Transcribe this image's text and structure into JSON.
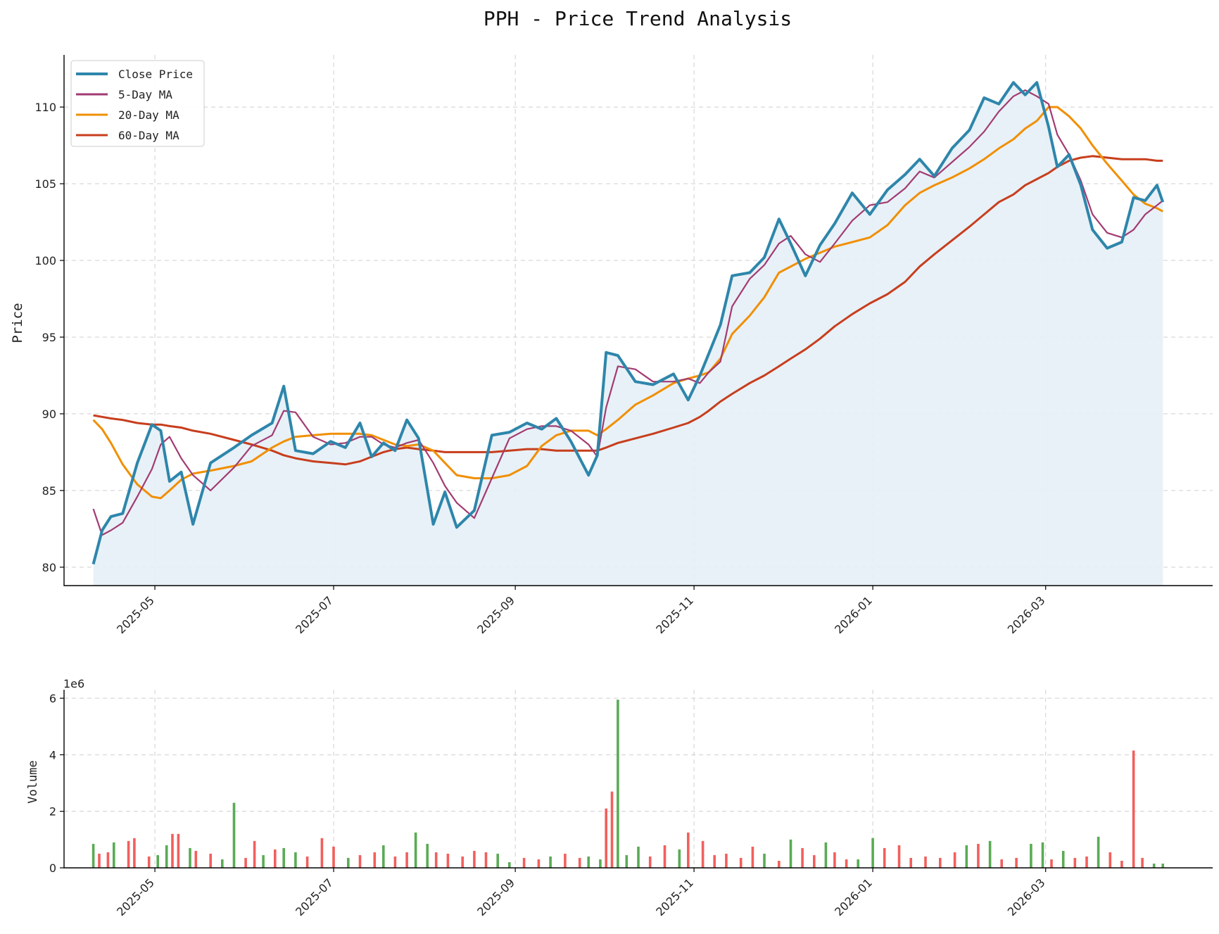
{
  "title": "PPH - Price Trend Analysis",
  "colors": {
    "close": "#2e86ab",
    "ma5": "#a23b72",
    "ma20": "#f18f01",
    "ma60": "#c73e1d",
    "fill": "#e6f0f6",
    "vol_up": "#f25f5c",
    "vol_down": "#5aab55"
  },
  "chart_data": [
    {
      "type": "line",
      "title": "PPH - Price Trend Analysis",
      "ylabel": "Price",
      "ylim": [
        78.8,
        113.4
      ],
      "xlim": [
        "2025-03-31",
        "2026-04-27"
      ],
      "yticks": [
        80,
        85,
        90,
        95,
        100,
        105,
        110
      ],
      "xticks": [
        "2025-05",
        "2025-07",
        "2025-09",
        "2025-11",
        "2026-01",
        "2026-03"
      ],
      "grid": true,
      "legend_position": "upper-left",
      "x": [
        "2025-04-10",
        "2025-04-13",
        "2025-04-16",
        "2025-04-20",
        "2025-04-25",
        "2025-04-30",
        "2025-05-03",
        "2025-05-06",
        "2025-05-10",
        "2025-05-14",
        "2025-05-20",
        "2025-05-28",
        "2025-06-03",
        "2025-06-10",
        "2025-06-14",
        "2025-06-18",
        "2025-06-24",
        "2025-06-30",
        "2025-07-05",
        "2025-07-10",
        "2025-07-14",
        "2025-07-18",
        "2025-07-22",
        "2025-07-26",
        "2025-07-30",
        "2025-08-04",
        "2025-08-08",
        "2025-08-12",
        "2025-08-18",
        "2025-08-24",
        "2025-08-30",
        "2025-09-05",
        "2025-09-10",
        "2025-09-15",
        "2025-09-20",
        "2025-09-26",
        "2025-09-29",
        "2025-10-02",
        "2025-10-06",
        "2025-10-12",
        "2025-10-18",
        "2025-10-25",
        "2025-10-30",
        "2025-11-03",
        "2025-11-06",
        "2025-11-10",
        "2025-11-14",
        "2025-11-20",
        "2025-11-25",
        "2025-11-30",
        "2025-12-04",
        "2025-12-09",
        "2025-12-14",
        "2025-12-19",
        "2025-12-25",
        "2025-12-31",
        "2026-01-06",
        "2026-01-12",
        "2026-01-17",
        "2026-01-22",
        "2026-01-28",
        "2026-02-03",
        "2026-02-08",
        "2026-02-13",
        "2026-02-18",
        "2026-02-22",
        "2026-02-26",
        "2026-03-02",
        "2026-03-05",
        "2026-03-09",
        "2026-03-13",
        "2026-03-17",
        "2026-03-22",
        "2026-03-27",
        "2026-03-31",
        "2026-04-04",
        "2026-04-08",
        "2026-04-10"
      ],
      "series": [
        {
          "name": "Close Price",
          "values": [
            80.2,
            82.4,
            83.3,
            83.5,
            86.8,
            89.3,
            88.9,
            85.6,
            86.2,
            82.8,
            86.8,
            87.8,
            88.6,
            89.4,
            91.8,
            87.6,
            87.4,
            88.2,
            87.8,
            89.4,
            87.2,
            88.1,
            87.6,
            89.6,
            88.4,
            82.8,
            84.9,
            82.6,
            83.7,
            88.6,
            88.8,
            89.4,
            89.0,
            89.7,
            88.2,
            86.0,
            87.3,
            94.0,
            93.8,
            92.1,
            91.9,
            92.6,
            90.9,
            92.5,
            93.9,
            95.8,
            99.0,
            99.2,
            100.2,
            102.7,
            101.1,
            99.0,
            101.0,
            102.4,
            104.4,
            103.0,
            104.6,
            105.6,
            106.6,
            105.5,
            107.3,
            108.5,
            110.6,
            110.2,
            111.6,
            110.8,
            111.6,
            108.7,
            106.1,
            106.9,
            104.9,
            102.0,
            100.8,
            101.2,
            104.1,
            103.9,
            104.9,
            103.8
          ]
        },
        {
          "name": "5-Day MA",
          "values": [
            83.8,
            82.1,
            82.4,
            82.9,
            84.6,
            86.4,
            88.0,
            88.5,
            87.1,
            86.0,
            85.0,
            86.5,
            87.9,
            88.6,
            90.2,
            90.1,
            88.5,
            88.0,
            88.1,
            88.5,
            88.5,
            88.0,
            87.8,
            88.1,
            88.3,
            86.8,
            85.3,
            84.2,
            83.2,
            85.8,
            88.4,
            89.0,
            89.2,
            89.2,
            88.9,
            88.0,
            87.2,
            90.4,
            93.1,
            92.9,
            92.1,
            92.1,
            92.3,
            92.0,
            92.7,
            93.4,
            97.0,
            98.8,
            99.7,
            101.1,
            101.6,
            100.4,
            99.9,
            101.1,
            102.6,
            103.6,
            103.8,
            104.7,
            105.8,
            105.4,
            106.4,
            107.4,
            108.4,
            109.7,
            110.7,
            111.1,
            110.7,
            110.2,
            108.2,
            106.9,
            105.2,
            103.0,
            101.8,
            101.5,
            102.0,
            103.0,
            103.6,
            103.9
          ]
        },
        {
          "name": "20-Day MA",
          "values": [
            89.6,
            89.0,
            88.1,
            86.7,
            85.4,
            84.6,
            84.5,
            85.0,
            85.7,
            86.1,
            86.3,
            86.6,
            86.9,
            87.8,
            88.2,
            88.5,
            88.6,
            88.7,
            88.7,
            88.7,
            88.6,
            88.3,
            88.0,
            87.9,
            88.0,
            87.6,
            86.8,
            86.0,
            85.8,
            85.8,
            86.0,
            86.6,
            87.9,
            88.6,
            88.9,
            88.9,
            88.6,
            89.0,
            89.6,
            90.6,
            91.2,
            92.0,
            92.3,
            92.5,
            92.7,
            93.6,
            95.2,
            96.4,
            97.6,
            99.2,
            99.6,
            100.1,
            100.5,
            100.9,
            101.2,
            101.5,
            102.3,
            103.6,
            104.4,
            104.9,
            105.4,
            106.0,
            106.6,
            107.3,
            107.9,
            108.6,
            109.1,
            110.0,
            110.0,
            109.4,
            108.6,
            107.5,
            106.3,
            105.2,
            104.3,
            103.7,
            103.4,
            103.2
          ]
        },
        {
          "name": "60-Day MA",
          "values": [
            89.9,
            89.8,
            89.7,
            89.6,
            89.4,
            89.3,
            89.3,
            89.2,
            89.1,
            88.9,
            88.7,
            88.3,
            88.0,
            87.6,
            87.3,
            87.1,
            86.9,
            86.8,
            86.7,
            86.9,
            87.2,
            87.5,
            87.7,
            87.8,
            87.7,
            87.6,
            87.5,
            87.5,
            87.5,
            87.5,
            87.6,
            87.7,
            87.7,
            87.6,
            87.6,
            87.6,
            87.6,
            87.8,
            88.1,
            88.4,
            88.7,
            89.1,
            89.4,
            89.8,
            90.2,
            90.8,
            91.3,
            92.0,
            92.5,
            93.1,
            93.6,
            94.2,
            94.9,
            95.7,
            96.5,
            97.2,
            97.8,
            98.6,
            99.6,
            100.4,
            101.3,
            102.2,
            103.0,
            103.8,
            104.3,
            104.9,
            105.3,
            105.7,
            106.1,
            106.5,
            106.7,
            106.8,
            106.7,
            106.6,
            106.6,
            106.6,
            106.5,
            106.5
          ]
        }
      ]
    },
    {
      "type": "bar",
      "ylabel": "Volume",
      "y_offset_label": "1e6",
      "ylim": [
        0,
        6.3
      ],
      "yticks": [
        0,
        2,
        4,
        6
      ],
      "xticks": [
        "2025-05",
        "2025-07",
        "2025-09",
        "2025-11",
        "2026-01",
        "2026-03"
      ],
      "grid": true,
      "x": [
        "2025-04-10",
        "2025-04-12",
        "2025-04-15",
        "2025-04-17",
        "2025-04-22",
        "2025-04-24",
        "2025-04-29",
        "2025-05-02",
        "2025-05-05",
        "2025-05-07",
        "2025-05-09",
        "2025-05-13",
        "2025-05-15",
        "2025-05-20",
        "2025-05-24",
        "2025-05-28",
        "2025-06-01",
        "2025-06-04",
        "2025-06-07",
        "2025-06-11",
        "2025-06-14",
        "2025-06-18",
        "2025-06-22",
        "2025-06-27",
        "2025-07-01",
        "2025-07-06",
        "2025-07-10",
        "2025-07-15",
        "2025-07-18",
        "2025-07-22",
        "2025-07-26",
        "2025-07-29",
        "2025-08-02",
        "2025-08-05",
        "2025-08-09",
        "2025-08-14",
        "2025-08-18",
        "2025-08-22",
        "2025-08-26",
        "2025-08-30",
        "2025-09-04",
        "2025-09-09",
        "2025-09-13",
        "2025-09-18",
        "2025-09-23",
        "2025-09-26",
        "2025-09-30",
        "2025-10-02",
        "2025-10-04",
        "2025-10-06",
        "2025-10-09",
        "2025-10-13",
        "2025-10-17",
        "2025-10-22",
        "2025-10-27",
        "2025-10-30",
        "2025-11-04",
        "2025-11-08",
        "2025-11-12",
        "2025-11-17",
        "2025-11-21",
        "2025-11-25",
        "2025-11-30",
        "2025-12-04",
        "2025-12-08",
        "2025-12-12",
        "2025-12-16",
        "2025-12-19",
        "2025-12-23",
        "2025-12-27",
        "2026-01-01",
        "2026-01-05",
        "2026-01-10",
        "2026-01-14",
        "2026-01-19",
        "2026-01-24",
        "2026-01-29",
        "2026-02-02",
        "2026-02-06",
        "2026-02-10",
        "2026-02-14",
        "2026-02-19",
        "2026-02-24",
        "2026-02-28",
        "2026-03-03",
        "2026-03-07",
        "2026-03-11",
        "2026-03-15",
        "2026-03-19",
        "2026-03-23",
        "2026-03-27",
        "2026-03-31",
        "2026-04-03",
        "2026-04-07",
        "2026-04-10"
      ],
      "values": [
        0.85,
        0.5,
        0.55,
        0.9,
        0.95,
        1.05,
        0.4,
        0.45,
        0.8,
        1.2,
        1.2,
        0.7,
        0.6,
        0.5,
        0.3,
        2.3,
        0.35,
        0.95,
        0.45,
        0.65,
        0.7,
        0.55,
        0.4,
        1.05,
        0.75,
        0.35,
        0.45,
        0.55,
        0.8,
        0.4,
        0.55,
        1.25,
        0.85,
        0.55,
        0.5,
        0.4,
        0.6,
        0.55,
        0.5,
        0.2,
        0.35,
        0.3,
        0.4,
        0.5,
        0.35,
        0.4,
        0.3,
        2.1,
        2.7,
        5.95,
        0.45,
        0.75,
        0.4,
        0.8,
        0.65,
        1.25,
        0.95,
        0.45,
        0.5,
        0.35,
        0.75,
        0.5,
        0.25,
        1.0,
        0.7,
        0.45,
        0.9,
        0.55,
        0.3,
        0.3,
        1.05,
        0.7,
        0.8,
        0.35,
        0.4,
        0.35,
        0.55,
        0.8,
        0.85,
        0.95,
        0.3,
        0.35,
        0.85,
        0.9,
        0.3,
        0.6,
        0.35,
        0.4,
        1.1,
        0.55,
        0.25,
        4.15,
        0.35,
        0.15,
        0.15
      ],
      "directions": [
        "down",
        "up",
        "up",
        "down",
        "up",
        "up",
        "up",
        "down",
        "down",
        "up",
        "up",
        "down",
        "up",
        "up",
        "down",
        "down",
        "up",
        "up",
        "down",
        "up",
        "down",
        "down",
        "up",
        "up",
        "up",
        "down",
        "up",
        "up",
        "down",
        "up",
        "up",
        "down",
        "down",
        "up",
        "up",
        "up",
        "up",
        "up",
        "down",
        "down",
        "up",
        "up",
        "down",
        "up",
        "up",
        "down",
        "down",
        "up",
        "up",
        "down",
        "down",
        "down",
        "up",
        "up",
        "down",
        "up",
        "up",
        "up",
        "up",
        "up",
        "up",
        "down",
        "up",
        "down",
        "up",
        "up",
        "down",
        "up",
        "up",
        "down",
        "down",
        "up",
        "up",
        "up",
        "up",
        "up",
        "up",
        "down",
        "up",
        "down",
        "up",
        "up",
        "down",
        "down",
        "up",
        "down",
        "up",
        "up",
        "down",
        "up",
        "up",
        "up",
        "up",
        "down",
        "down"
      ]
    }
  ]
}
